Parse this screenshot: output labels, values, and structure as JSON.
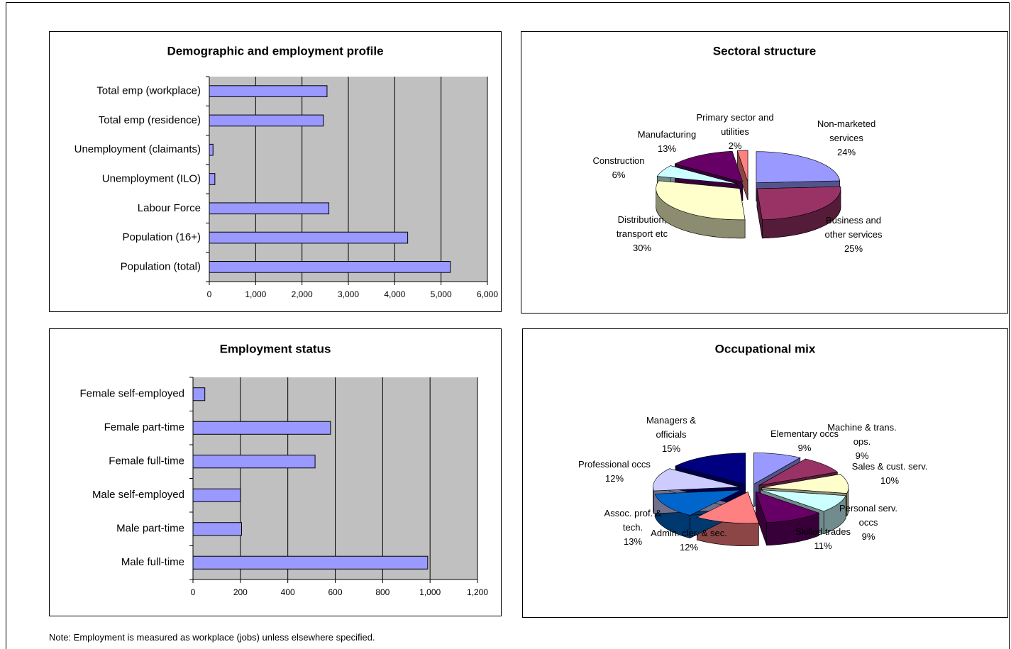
{
  "chart_data": [
    {
      "type": "bar",
      "orientation": "horizontal",
      "title": "Demographic and employment profile",
      "categories": [
        "Total emp (workplace)",
        "Total emp (residence)",
        "Unemployment (claimants)",
        "Unemployment (ILO)",
        "Labour Force",
        "Population (16+)",
        "Population (total)"
      ],
      "values": [
        2540,
        2460,
        80,
        120,
        2580,
        4280,
        5200
      ],
      "color": "#9999ff",
      "xlim": [
        0,
        6000
      ],
      "xticks": [
        0,
        {
          "value": 1000,
          "label": "1,000"
        },
        {
          "value": 2000,
          "label": "2,000"
        },
        {
          "value": 3000,
          "label": "3,000"
        },
        {
          "value": 4000,
          "label": "4,000"
        },
        {
          "value": 5000,
          "label": "5,000"
        },
        {
          "value": 6000,
          "label": "6,000"
        }
      ],
      "grid": true
    },
    {
      "type": "pie",
      "title": "Sectoral structure",
      "categories": [
        "Non-marketed services",
        "Business and other services",
        "Distribution, transport etc",
        "Construction",
        "Manufacturing",
        "Primary sector and utilities"
      ],
      "values": [
        24,
        25,
        30,
        6,
        13,
        2
      ],
      "value_labels": [
        "24%",
        "25%",
        "30%",
        "6%",
        "13%",
        "2%"
      ],
      "colors": [
        "#9999ff",
        "#993366",
        "#ffffcc",
        "#ccffff",
        "#660066",
        "#ff8080"
      ]
    },
    {
      "type": "bar",
      "orientation": "horizontal",
      "title": "Employment status",
      "categories": [
        "Female self-employed",
        "Female part-time",
        "Female full-time",
        "Male self-employed",
        "Male part-time",
        "Male full-time"
      ],
      "values": [
        50,
        580,
        515,
        200,
        205,
        990
      ],
      "color": "#9999ff",
      "xlim": [
        0,
        1200
      ],
      "xticks": [
        0,
        200,
        400,
        600,
        800,
        {
          "value": 1000,
          "label": "1,000"
        },
        {
          "value": 1200,
          "label": "1,200"
        }
      ],
      "grid": true
    },
    {
      "type": "pie",
      "title": "Occupational mix",
      "categories": [
        "Elementary occs",
        "Machine & trans. ops.",
        "Sales & cust. serv.",
        "Personal serv. occs",
        "Skilled trades",
        "Admin. cler. & sec.",
        "Assoc. prof. & tech.",
        "Professional occs",
        "Managers & officials"
      ],
      "values": [
        9,
        9,
        10,
        9,
        11,
        12,
        13,
        12,
        15
      ],
      "value_labels": [
        "9%",
        "9%",
        "10%",
        "9%",
        "11%",
        "12%",
        "13%",
        "12%",
        "15%"
      ],
      "colors": [
        "#9999ff",
        "#993366",
        "#ffffcc",
        "#ccffff",
        "#660066",
        "#ff8080",
        "#0066cc",
        "#ccccff",
        "#000080"
      ]
    }
  ],
  "note": "Note: Employment is measured as workplace (jobs) unless elsewhere specified."
}
